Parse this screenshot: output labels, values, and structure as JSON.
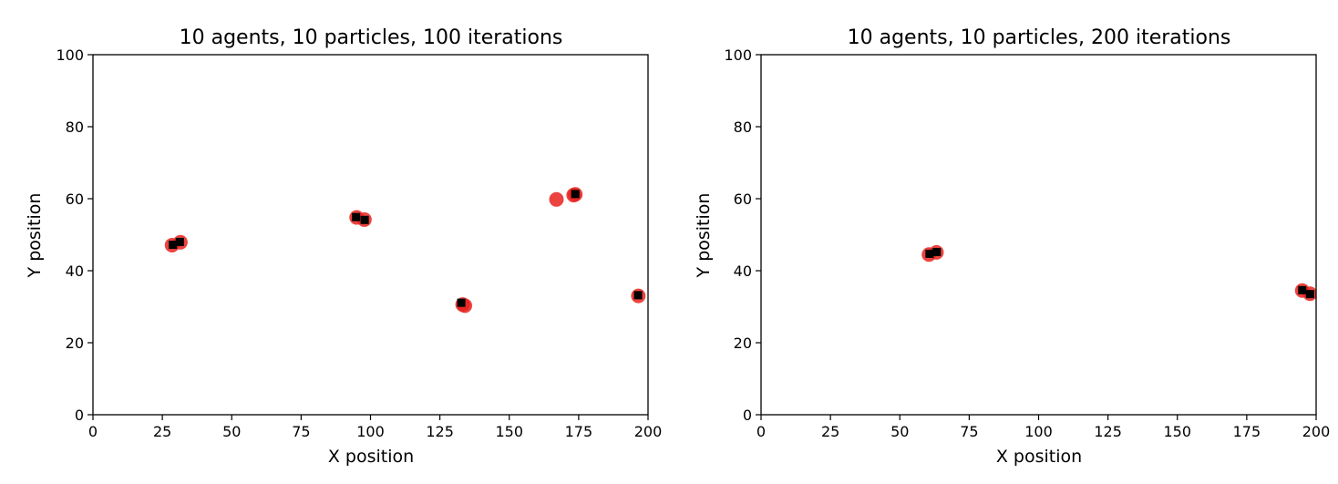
{
  "chart_data": [
    {
      "type": "scatter",
      "title": "10 agents, 10 particles, 100 iterations",
      "xlabel": "X position",
      "ylabel": "Y position",
      "xlim": [
        0,
        200
      ],
      "ylim": [
        0,
        100
      ],
      "xticks": [
        "0",
        "25",
        "50",
        "75",
        "100",
        "125",
        "150",
        "175",
        "200"
      ],
      "yticks": [
        "0",
        "20",
        "40",
        "60",
        "80",
        "100"
      ],
      "grid": false,
      "colors": {
        "particles": "#e8231f",
        "agents": "#000000"
      },
      "series": [
        {
          "marker": "circle",
          "points": [
            {
              "x": 28.5,
              "y": 47.1
            },
            {
              "x": 31.5,
              "y": 47.9
            },
            {
              "x": 95.0,
              "y": 54.8
            },
            {
              "x": 97.8,
              "y": 54.2
            },
            {
              "x": 133.2,
              "y": 30.6
            },
            {
              "x": 134.0,
              "y": 30.3
            },
            {
              "x": 173.8,
              "y": 61.2
            },
            {
              "x": 173.2,
              "y": 61.0
            },
            {
              "x": 196.5,
              "y": 33.0
            },
            {
              "x": 167.0,
              "y": 59.8
            }
          ]
        },
        {
          "marker": "square",
          "points": [
            {
              "x": 28.8,
              "y": 47.2
            },
            {
              "x": 31.3,
              "y": 48.0
            },
            {
              "x": 94.8,
              "y": 54.9
            },
            {
              "x": 97.9,
              "y": 54.1
            },
            {
              "x": 132.7,
              "y": 31.1
            },
            {
              "x": 173.8,
              "y": 61.3
            },
            {
              "x": 196.4,
              "y": 33.2
            }
          ]
        }
      ]
    },
    {
      "type": "scatter",
      "title": "10 agents, 10 particles, 200 iterations",
      "xlabel": "X position",
      "ylabel": "Y position",
      "xlim": [
        0,
        200
      ],
      "ylim": [
        0,
        100
      ],
      "xticks": [
        "0",
        "25",
        "50",
        "75",
        "100",
        "125",
        "150",
        "175",
        "200"
      ],
      "yticks": [
        "0",
        "20",
        "40",
        "60",
        "80",
        "100"
      ],
      "grid": false,
      "colors": {
        "particles": "#e8231f",
        "agents": "#000000"
      },
      "series": [
        {
          "marker": "circle",
          "points": [
            {
              "x": 60.5,
              "y": 44.5
            },
            {
              "x": 63.2,
              "y": 45.1
            },
            {
              "x": 195.0,
              "y": 34.5
            },
            {
              "x": 197.8,
              "y": 33.6
            }
          ]
        },
        {
          "marker": "square",
          "points": [
            {
              "x": 60.7,
              "y": 44.7
            },
            {
              "x": 63.3,
              "y": 45.2
            },
            {
              "x": 195.0,
              "y": 34.6
            },
            {
              "x": 197.8,
              "y": 33.5
            }
          ]
        }
      ]
    }
  ]
}
